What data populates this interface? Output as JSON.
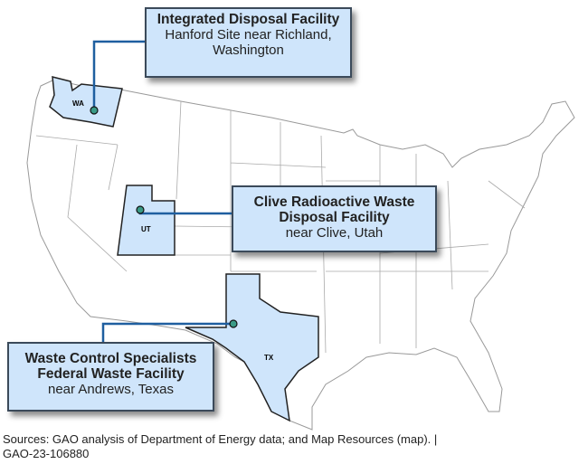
{
  "colors": {
    "highlight_state": "#cfe5fb",
    "leader_line": "#1f5fa0",
    "site_marker": "#3a9a86",
    "state_border": "#aaaaaa"
  },
  "states": [
    {
      "abbr": "WA"
    },
    {
      "abbr": "UT"
    },
    {
      "abbr": "TX"
    }
  ],
  "facilities": [
    {
      "name": "Integrated Disposal Facility",
      "location": "Hanford Site near Richland, Washington"
    },
    {
      "name": "Clive Radioactive Waste Disposal Facility",
      "location": "near Clive, Utah"
    },
    {
      "name": "Waste Control Specialists Federal Waste Facility",
      "location": "near Andrews, Texas"
    }
  ],
  "source": {
    "text": "Sources: GAO analysis of Department of Energy data; and Map Resources (map).  |",
    "report_id": "GAO-23-106880"
  }
}
